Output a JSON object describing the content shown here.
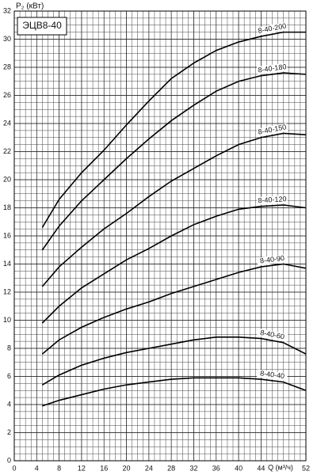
{
  "chart_data": {
    "type": "line",
    "title": "ЭЦВ8-40",
    "y_label": "P₂ (кВт)",
    "x_label": "Q (м³/ч)",
    "x": [
      5,
      8,
      12,
      16,
      20,
      24,
      28,
      32,
      36,
      40,
      44,
      48,
      52
    ],
    "series": [
      {
        "name": "8-40-200",
        "color": "#000000",
        "values": [
          16.6,
          18.6,
          20.5,
          22.1,
          23.9,
          25.6,
          27.2,
          28.3,
          29.2,
          29.8,
          30.2,
          30.5,
          30.5
        ]
      },
      {
        "name": "8-40-180",
        "color": "#000000",
        "values": [
          15.0,
          16.7,
          18.5,
          20.0,
          21.5,
          22.9,
          24.2,
          25.3,
          26.3,
          27.0,
          27.4,
          27.6,
          27.5
        ]
      },
      {
        "name": "8-40-150",
        "color": "#000000",
        "values": [
          12.4,
          13.8,
          15.2,
          16.5,
          17.6,
          18.8,
          19.9,
          20.8,
          21.7,
          22.5,
          23.0,
          23.3,
          23.2
        ]
      },
      {
        "name": "8-40-120",
        "color": "#000000",
        "values": [
          9.8,
          11.0,
          12.3,
          13.3,
          14.3,
          15.1,
          16.0,
          16.8,
          17.4,
          17.9,
          18.1,
          18.2,
          18.0
        ]
      },
      {
        "name": "8-40-90",
        "color": "#000000",
        "values": [
          7.6,
          8.6,
          9.5,
          10.2,
          10.8,
          11.3,
          11.9,
          12.4,
          12.9,
          13.4,
          13.8,
          14.0,
          13.7
        ]
      },
      {
        "name": "8-40-60",
        "color": "#000000",
        "values": [
          5.4,
          6.1,
          6.8,
          7.3,
          7.7,
          8.0,
          8.3,
          8.6,
          8.8,
          8.8,
          8.7,
          8.4,
          7.6
        ]
      },
      {
        "name": "8-40-40",
        "color": "#000000",
        "values": [
          3.9,
          4.3,
          4.7,
          5.1,
          5.4,
          5.6,
          5.8,
          5.9,
          5.9,
          5.9,
          5.8,
          5.6,
          5.0
        ]
      }
    ],
    "xlim": [
      0,
      52
    ],
    "ylim": [
      0,
      32
    ],
    "xticks": [
      0,
      4,
      8,
      12,
      16,
      20,
      24,
      28,
      32,
      36,
      40,
      44,
      52
    ],
    "yticks": [
      0,
      2,
      4,
      6,
      8,
      10,
      12,
      14,
      16,
      18,
      20,
      22,
      24,
      26,
      28,
      30,
      32
    ],
    "grid": true
  }
}
